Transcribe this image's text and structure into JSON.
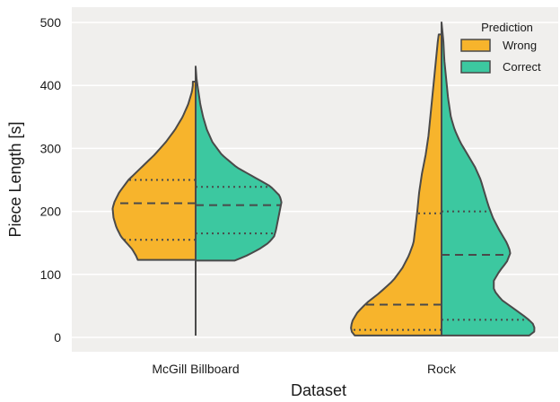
{
  "chart_data": {
    "type": "violin",
    "split": true,
    "xlabel": "Dataset",
    "ylabel": "Piece Length [s]",
    "ylim": [
      -25,
      510
    ],
    "yticks": [
      0,
      100,
      200,
      300,
      400,
      500
    ],
    "categories": [
      "McGill Billboard",
      "Rock"
    ],
    "grid": "horizontal",
    "legend": {
      "title": "Prediction",
      "placement": "top-right",
      "items": [
        {
          "label": "Wrong",
          "color": "#F7B42C"
        },
        {
          "label": "Correct",
          "color": "#3CC8A0"
        }
      ]
    },
    "series": [
      {
        "name": "Wrong",
        "color": "#F7B42C",
        "side": "left",
        "violins": [
          {
            "category": "McGill Billboard",
            "min": 123,
            "max": 406,
            "q1": 155,
            "median": 213,
            "q3": 250,
            "density": [
              [
                123,
                0.62
              ],
              [
                130,
                0.64
              ],
              [
                140,
                0.68
              ],
              [
                150,
                0.74
              ],
              [
                160,
                0.8
              ],
              [
                175,
                0.85
              ],
              [
                190,
                0.88
              ],
              [
                205,
                0.89
              ],
              [
                215,
                0.87
              ],
              [
                230,
                0.82
              ],
              [
                250,
                0.72
              ],
              [
                270,
                0.58
              ],
              [
                290,
                0.44
              ],
              [
                310,
                0.32
              ],
              [
                330,
                0.22
              ],
              [
                350,
                0.14
              ],
              [
                370,
                0.08
              ],
              [
                390,
                0.04
              ],
              [
                400,
                0.03
              ],
              [
                406,
                0.03
              ]
            ]
          },
          {
            "category": "Rock",
            "min": 3,
            "max": 481,
            "q1": 12,
            "median": 52,
            "q3": 197,
            "density": [
              [
                3,
                0.93
              ],
              [
                8,
                0.96
              ],
              [
                15,
                0.97
              ],
              [
                25,
                0.96
              ],
              [
                40,
                0.9
              ],
              [
                55,
                0.8
              ],
              [
                70,
                0.67
              ],
              [
                90,
                0.52
              ],
              [
                110,
                0.42
              ],
              [
                130,
                0.35
              ],
              [
                150,
                0.3
              ],
              [
                175,
                0.28
              ],
              [
                200,
                0.26
              ],
              [
                230,
                0.24
              ],
              [
                260,
                0.21
              ],
              [
                290,
                0.17
              ],
              [
                320,
                0.14
              ],
              [
                350,
                0.12
              ],
              [
                380,
                0.1
              ],
              [
                410,
                0.08
              ],
              [
                440,
                0.06
              ],
              [
                470,
                0.04
              ],
              [
                481,
                0.03
              ]
            ]
          }
        ]
      },
      {
        "name": "Correct",
        "color": "#3CC8A0",
        "side": "right",
        "violins": [
          {
            "category": "McGill Billboard",
            "min": 122,
            "max": 430,
            "q1": 165,
            "median": 210,
            "q3": 239,
            "density": [
              [
                122,
                0.42
              ],
              [
                130,
                0.55
              ],
              [
                140,
                0.68
              ],
              [
                150,
                0.78
              ],
              [
                160,
                0.84
              ],
              [
                170,
                0.86
              ],
              [
                185,
                0.88
              ],
              [
                200,
                0.9
              ],
              [
                215,
                0.92
              ],
              [
                225,
                0.9
              ],
              [
                240,
                0.8
              ],
              [
                255,
                0.62
              ],
              [
                270,
                0.44
              ],
              [
                290,
                0.28
              ],
              [
                310,
                0.18
              ],
              [
                330,
                0.12
              ],
              [
                350,
                0.08
              ],
              [
                370,
                0.05
              ],
              [
                390,
                0.03
              ],
              [
                410,
                0.01
              ],
              [
                430,
                0.0
              ]
            ]
          },
          {
            "category": "Rock",
            "min": 3,
            "max": 500,
            "q1": 28,
            "median": 131,
            "q3": 200,
            "density": [
              [
                3,
                0.94
              ],
              [
                10,
                1.0
              ],
              [
                20,
                0.99
              ],
              [
                30,
                0.92
              ],
              [
                45,
                0.78
              ],
              [
                60,
                0.64
              ],
              [
                75,
                0.56
              ],
              [
                90,
                0.56
              ],
              [
                105,
                0.62
              ],
              [
                120,
                0.7
              ],
              [
                135,
                0.74
              ],
              [
                150,
                0.7
              ],
              [
                170,
                0.62
              ],
              [
                190,
                0.55
              ],
              [
                210,
                0.5
              ],
              [
                230,
                0.46
              ],
              [
                250,
                0.42
              ],
              [
                270,
                0.36
              ],
              [
                290,
                0.28
              ],
              [
                310,
                0.2
              ],
              [
                330,
                0.14
              ],
              [
                350,
                0.1
              ],
              [
                380,
                0.07
              ],
              [
                410,
                0.05
              ],
              [
                440,
                0.03
              ],
              [
                470,
                0.02
              ],
              [
                500,
                0.0
              ]
            ]
          }
        ]
      }
    ]
  }
}
